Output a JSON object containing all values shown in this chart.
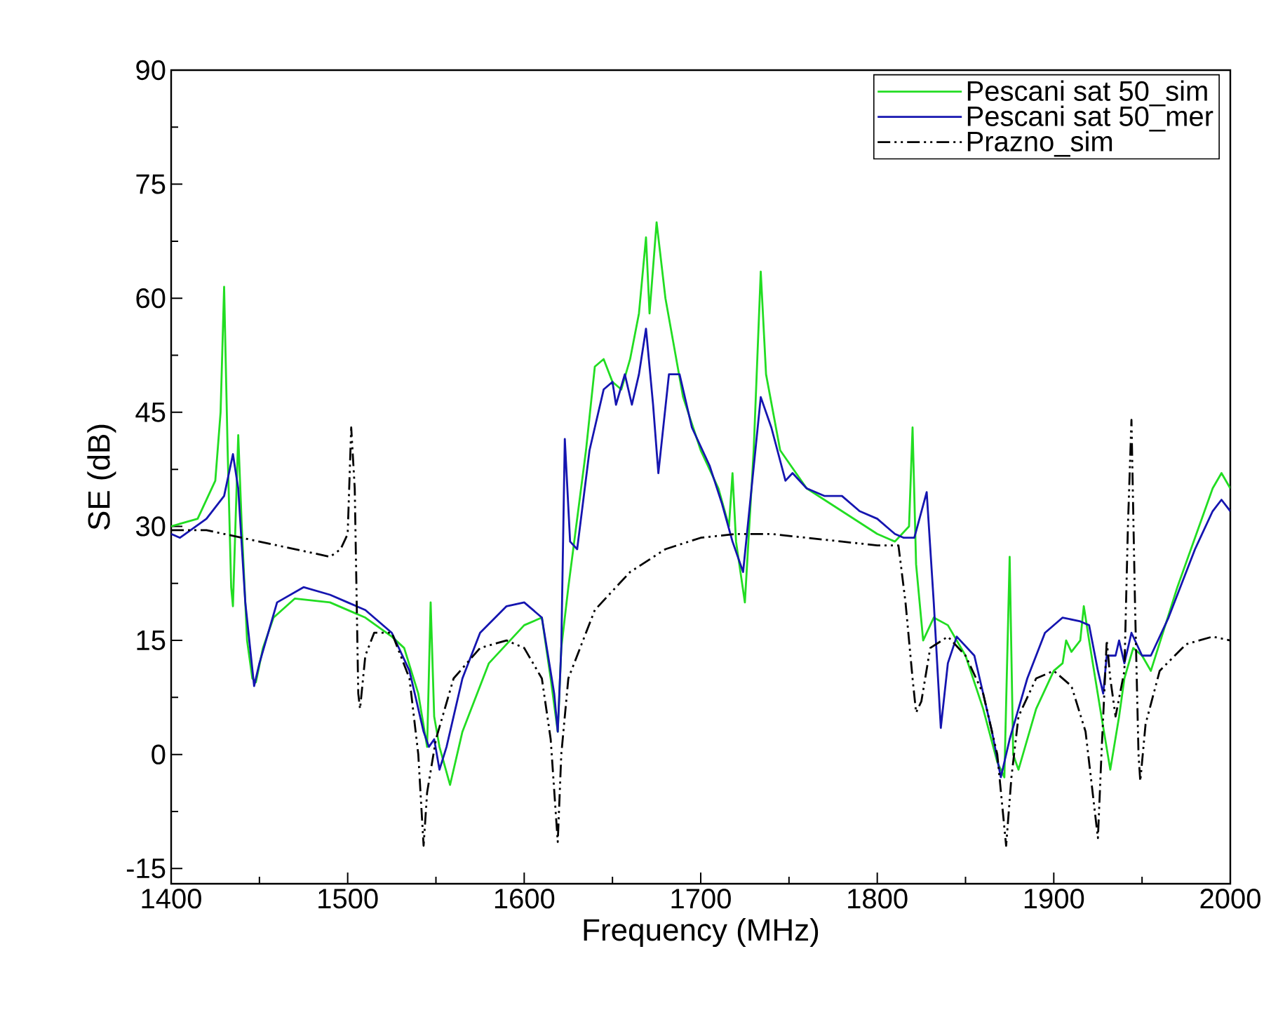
{
  "chart_data": {
    "type": "line",
    "xlabel": "Frequency (MHz)",
    "ylabel": "SE (dB)",
    "xlim": [
      1400,
      2000
    ],
    "ylim": [
      -17,
      90
    ],
    "xticks": [
      1400,
      1500,
      1600,
      1700,
      1800,
      1900,
      2000
    ],
    "yticks": [
      -15,
      0,
      15,
      30,
      45,
      60,
      75,
      90
    ],
    "grid": false,
    "legend": "top right",
    "marker": "none",
    "series": [
      {
        "name": "Pescani sat 50_sim",
        "color": "#22dd22",
        "line_style": "solid",
        "x": [
          1400,
          1415,
          1425,
          1428,
          1430,
          1432,
          1434,
          1435,
          1438,
          1440,
          1443,
          1446,
          1448,
          1452,
          1458,
          1470,
          1490,
          1510,
          1525,
          1532,
          1540,
          1545,
          1547,
          1549,
          1552,
          1558,
          1565,
          1580,
          1600,
          1610,
          1615,
          1619,
          1621,
          1625,
          1635,
          1640,
          1645,
          1650,
          1655,
          1660,
          1665,
          1669,
          1671,
          1675,
          1680,
          1690,
          1700,
          1710,
          1716,
          1718,
          1720,
          1725,
          1730,
          1734,
          1737,
          1745,
          1760,
          1780,
          1800,
          1810,
          1818,
          1820,
          1822,
          1826,
          1832,
          1840,
          1850,
          1860,
          1868,
          1872,
          1875,
          1877,
          1880,
          1890,
          1900,
          1905,
          1907,
          1910,
          1915,
          1917,
          1920,
          1927,
          1932,
          1937,
          1940,
          1945,
          1950,
          1955,
          1970,
          1990,
          1995,
          2000
        ],
        "values": [
          30,
          31,
          36,
          45,
          61.5,
          40,
          22,
          19.5,
          42,
          30,
          15,
          10,
          9.5,
          14,
          18,
          20.5,
          20,
          18,
          15.5,
          14,
          8,
          1,
          20,
          5,
          1,
          -4,
          3,
          12,
          17,
          18,
          10,
          3,
          14,
          22,
          40,
          51,
          52,
          49,
          48,
          52,
          58,
          68,
          58,
          70,
          60,
          47,
          40,
          35,
          30,
          37,
          28,
          20,
          40,
          63.5,
          50,
          40,
          35,
          32,
          29,
          28,
          30,
          43,
          25,
          15,
          18,
          17,
          13,
          6,
          -1,
          -3,
          26,
          0,
          -2,
          6,
          11,
          12,
          15,
          13.5,
          15,
          19.5,
          15,
          5,
          -2,
          5,
          10,
          14,
          13,
          11,
          22,
          35,
          37,
          35
        ]
      },
      {
        "name": "Pescani sat 50_mer",
        "color": "#1515b0",
        "line_style": "solid",
        "x": [
          1400,
          1405,
          1420,
          1430,
          1435,
          1438,
          1442,
          1447,
          1450,
          1460,
          1475,
          1490,
          1500,
          1510,
          1525,
          1535,
          1543,
          1546,
          1549,
          1552,
          1556,
          1565,
          1575,
          1590,
          1600,
          1610,
          1617,
          1619,
          1621,
          1623,
          1626,
          1630,
          1637,
          1645,
          1650,
          1652,
          1657,
          1661,
          1665,
          1669,
          1673,
          1676,
          1682,
          1688,
          1695,
          1705,
          1712,
          1718,
          1724,
          1734,
          1740,
          1748,
          1752,
          1760,
          1770,
          1780,
          1790,
          1800,
          1810,
          1815,
          1821,
          1828,
          1832,
          1836,
          1840,
          1845,
          1855,
          1865,
          1870,
          1875,
          1885,
          1895,
          1905,
          1915,
          1920,
          1925,
          1928,
          1930,
          1935,
          1937,
          1940,
          1944,
          1950,
          1955,
          1965,
          1980,
          1990,
          1995,
          2000
        ],
        "values": [
          29,
          28.5,
          31,
          34,
          39.5,
          35,
          20,
          9,
          12,
          20,
          22,
          21,
          20,
          19,
          16,
          11,
          3,
          1,
          2,
          -2,
          1,
          10,
          16,
          19.5,
          20,
          18,
          8,
          3,
          14,
          41.5,
          28,
          27,
          40,
          48,
          49,
          46,
          50,
          46,
          50,
          56,
          46,
          37,
          50,
          50,
          43,
          38,
          33,
          28,
          24,
          47,
          43,
          36,
          37,
          35,
          34,
          34,
          32,
          31,
          29,
          28.5,
          28.5,
          34.5,
          20,
          3.5,
          12,
          15.5,
          13,
          3,
          -3,
          2,
          10,
          16,
          18,
          17.5,
          17,
          11,
          8,
          13,
          13,
          15,
          12,
          16,
          13,
          13,
          18,
          27,
          32,
          33.5,
          32
        ]
      },
      {
        "name": "Prazno_sim",
        "color": "#000000",
        "line_style": "dashdot",
        "x": [
          1400,
          1420,
          1440,
          1460,
          1480,
          1490,
          1496,
          1500,
          1502,
          1504,
          1506,
          1507,
          1510,
          1515,
          1525,
          1535,
          1540,
          1543,
          1545,
          1550,
          1560,
          1575,
          1590,
          1600,
          1610,
          1615,
          1619,
          1621,
          1625,
          1640,
          1660,
          1680,
          1700,
          1720,
          1740,
          1760,
          1780,
          1800,
          1812,
          1816,
          1820,
          1822,
          1825,
          1830,
          1840,
          1850,
          1860,
          1868,
          1873,
          1876,
          1880,
          1890,
          1900,
          1910,
          1918,
          1922,
          1925,
          1927,
          1930,
          1932,
          1935,
          1940,
          1942,
          1944,
          1946,
          1948,
          1949,
          1952,
          1960,
          1975,
          1990,
          2000
        ],
        "values": [
          29.5,
          29.5,
          28.5,
          27.5,
          26.5,
          26,
          27,
          29,
          43,
          35,
          8,
          6,
          13,
          16,
          16,
          10,
          0,
          -12,
          -5,
          2,
          10,
          14,
          15,
          14,
          10,
          2,
          -11.5,
          0,
          10,
          19,
          24,
          27,
          28.5,
          29,
          29,
          28.5,
          28,
          27.5,
          27.5,
          20,
          10,
          5.5,
          7,
          14,
          15.5,
          13,
          8,
          0,
          -12,
          -3,
          5,
          10,
          11,
          9,
          3,
          -5,
          -11,
          0,
          15,
          10,
          5,
          11,
          30,
          44,
          20,
          0,
          -3.5,
          4,
          11,
          14.5,
          15.5,
          15
        ]
      }
    ]
  }
}
